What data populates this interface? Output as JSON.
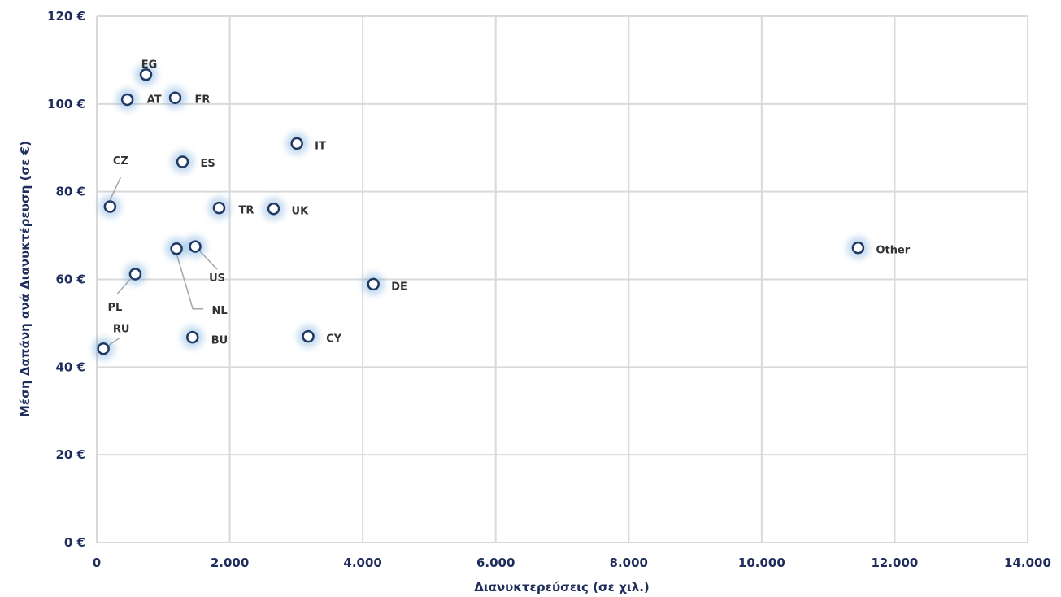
{
  "chart_data": {
    "type": "scatter",
    "title": "",
    "xlabel": "Διανυκτερεύσεις (σε χιλ.)",
    "ylabel": "Μέση Δαπάνη ανά Διανυκτέρευση (σε €)",
    "xlim": [
      0,
      14000
    ],
    "ylim": [
      0,
      120
    ],
    "x_ticks": [
      0,
      2000,
      4000,
      6000,
      8000,
      10000,
      12000,
      14000
    ],
    "x_tick_labels": [
      "0",
      "2.000",
      "4.000",
      "6.000",
      "8.000",
      "10.000",
      "12.000",
      "14.000"
    ],
    "y_ticks": [
      0,
      20,
      40,
      60,
      80,
      100,
      120
    ],
    "y_tick_labels": [
      "0 €",
      "20 €",
      "40 €",
      "60 €",
      "80 €",
      "100 €",
      "120 €"
    ],
    "grid": true,
    "legend": "none",
    "marker_color": "#1f3864",
    "glow_color": "#5b9bd5",
    "points": [
      {
        "label": "EG",
        "x": 740,
        "y": 106.7
      },
      {
        "label": "AT",
        "x": 460,
        "y": 101.0
      },
      {
        "label": "FR",
        "x": 1180,
        "y": 101.4
      },
      {
        "label": "IT",
        "x": 3010,
        "y": 91.0
      },
      {
        "label": "ES",
        "x": 1290,
        "y": 86.8
      },
      {
        "label": "CZ",
        "x": 200,
        "y": 76.6
      },
      {
        "label": "TR",
        "x": 1840,
        "y": 76.3
      },
      {
        "label": "UK",
        "x": 2660,
        "y": 76.1
      },
      {
        "label": "Other",
        "x": 11450,
        "y": 67.2
      },
      {
        "label": "NL",
        "x": 1200,
        "y": 67.0
      },
      {
        "label": "US",
        "x": 1480,
        "y": 67.5
      },
      {
        "label": "PL",
        "x": 580,
        "y": 61.2
      },
      {
        "label": "DE",
        "x": 4160,
        "y": 58.9
      },
      {
        "label": "BU",
        "x": 1440,
        "y": 46.8
      },
      {
        "label": "CY",
        "x": 3180,
        "y": 47.0
      },
      {
        "label": "RU",
        "x": 100,
        "y": 44.2
      }
    ]
  }
}
